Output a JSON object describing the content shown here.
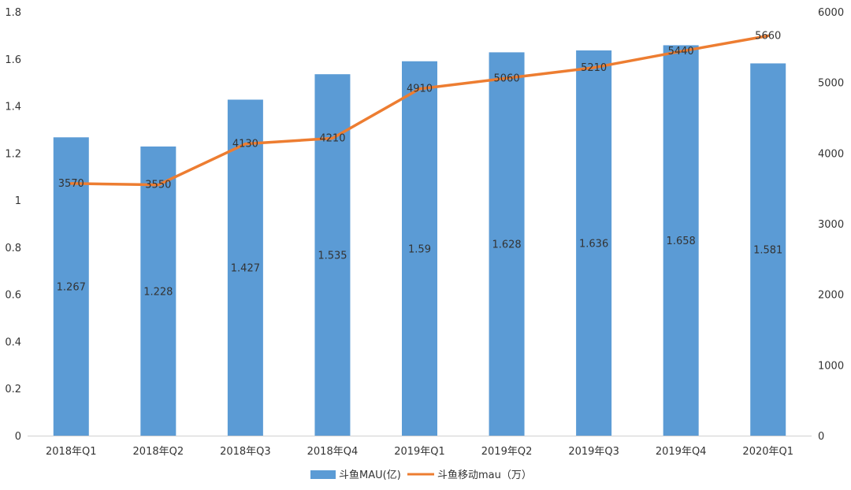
{
  "chart_data": {
    "type": "bar+line",
    "categories": [
      "2018年Q1",
      "2018年Q2",
      "2018年Q3",
      "2018年Q4",
      "2019年Q1",
      "2019年Q2",
      "2019年Q3",
      "2019年Q4",
      "2020年Q1"
    ],
    "series": [
      {
        "name": "斗鱼MAU(亿)",
        "type": "bar",
        "axis": "left",
        "values": [
          1.267,
          1.228,
          1.427,
          1.535,
          1.59,
          1.628,
          1.636,
          1.658,
          1.581
        ],
        "labels": [
          "1.267",
          "1.228",
          "1.427",
          "1.535",
          "1.59",
          "1.628",
          "1.636",
          "1.658",
          "1.581"
        ],
        "color": "#5b9bd5"
      },
      {
        "name": "斗鱼移动mau（万）",
        "type": "line",
        "axis": "right",
        "values": [
          3570,
          3550,
          4130,
          4210,
          4910,
          5060,
          5210,
          5440,
          5660
        ],
        "labels": [
          "3570",
          "3550",
          "4130",
          "4210",
          "4910",
          "5060",
          "5210",
          "5440",
          "5660"
        ],
        "color": "#ed7d31"
      }
    ],
    "y_left": {
      "min": 0,
      "max": 1.8,
      "ticks": [
        "0",
        "0.2",
        "0.4",
        "0.6",
        "0.8",
        "1",
        "1.2",
        "1.4",
        "1.6",
        "1.8"
      ]
    },
    "y_right": {
      "min": 0,
      "max": 6000,
      "ticks": [
        "0",
        "1000",
        "2000",
        "3000",
        "4000",
        "5000",
        "6000"
      ]
    },
    "grid": false,
    "legend_position": "bottom-center"
  }
}
